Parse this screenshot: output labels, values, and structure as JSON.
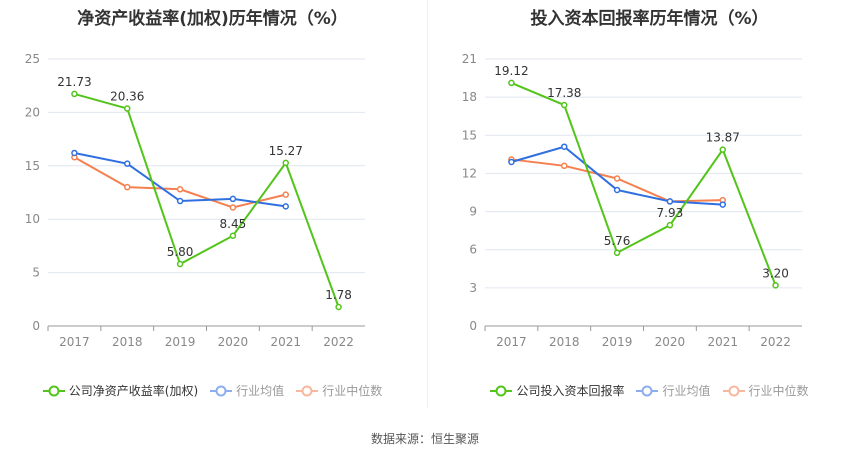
{
  "chart_data": [
    {
      "type": "line",
      "title": "净资产收益率(加权)历年情况（%）",
      "categories": [
        "2017",
        "2018",
        "2019",
        "2020",
        "2021",
        "2022"
      ],
      "ylim": [
        0,
        25
      ],
      "yticks": [
        0,
        5,
        10,
        15,
        20,
        25
      ],
      "grid": true,
      "legend": "bottom",
      "series": [
        {
          "name": "公司净资产收益率(加权)",
          "color": "#52c41a",
          "values": [
            21.73,
            20.36,
            5.8,
            8.45,
            15.27,
            1.78
          ],
          "labels": [
            "21.73",
            "20.36",
            "5.80",
            "8.45",
            "15.27",
            "1.78"
          ]
        },
        {
          "name": "行业均值",
          "color": "#2f6fe0",
          "legend_color": "#8aaef0",
          "values": [
            16.2,
            15.2,
            11.7,
            11.9,
            11.2,
            null
          ]
        },
        {
          "name": "行业中位数",
          "color": "#f5804f",
          "legend_color": "#f7b89e",
          "values": [
            15.8,
            13.0,
            12.8,
            11.1,
            12.3,
            null
          ]
        }
      ]
    },
    {
      "type": "line",
      "title": "投入资本回报率历年情况（%）",
      "categories": [
        "2017",
        "2018",
        "2019",
        "2020",
        "2021",
        "2022"
      ],
      "ylim": [
        0,
        21
      ],
      "yticks": [
        0,
        3,
        6,
        9,
        12,
        15,
        18,
        21
      ],
      "grid": true,
      "legend": "bottom",
      "series": [
        {
          "name": "公司投入资本回报率",
          "color": "#52c41a",
          "values": [
            19.12,
            17.38,
            5.76,
            7.93,
            13.87,
            3.2
          ],
          "labels": [
            "19.12",
            "17.38",
            "5.76",
            "7.93",
            "13.87",
            "3.20"
          ]
        },
        {
          "name": "行业均值",
          "color": "#2f6fe0",
          "legend_color": "#8aaef0",
          "values": [
            12.9,
            14.1,
            10.7,
            9.8,
            9.55,
            null
          ]
        },
        {
          "name": "行业中位数",
          "color": "#f5804f",
          "legend_color": "#f7b89e",
          "values": [
            13.1,
            12.6,
            11.6,
            9.8,
            9.9,
            null
          ]
        }
      ]
    }
  ],
  "source": "数据来源：恒生聚源"
}
